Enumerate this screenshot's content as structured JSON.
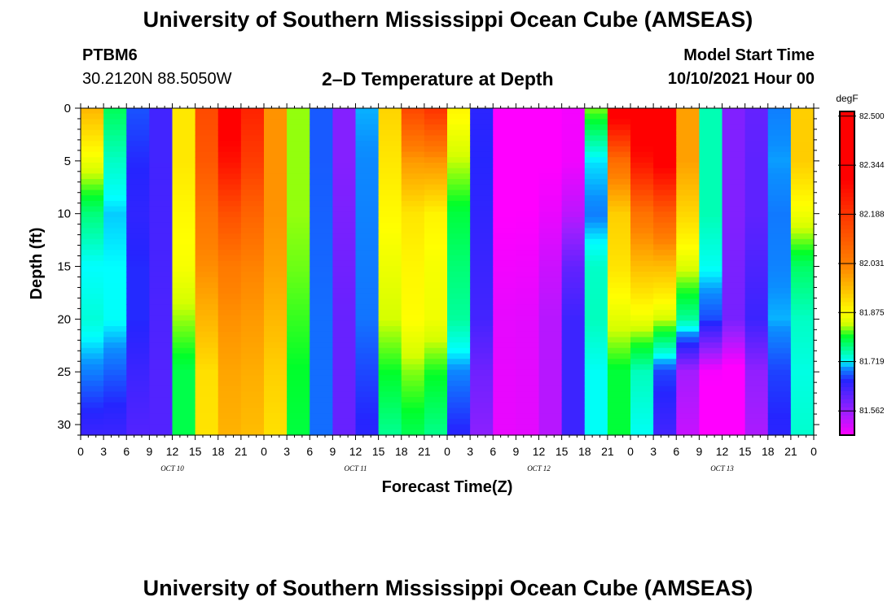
{
  "header": {
    "title": "University of Southern Mississippi Ocean Cube (AMSEAS)",
    "station": "PTBM6",
    "coordinates": "30.2120N  88.5050W",
    "chart_title": "2–D Temperature at Depth",
    "model_start_label": "Model Start Time",
    "model_start_date": "10/10/2021 Hour 00"
  },
  "footer": {
    "title": "University of Southern Mississippi Ocean Cube (AMSEAS)"
  },
  "chart_data": {
    "type": "heatmap",
    "title": "2–D Temperature at Depth",
    "xlabel": "Forecast Time(Z)",
    "ylabel": "Depth (ft)",
    "x_hours": [
      0,
      3,
      6,
      9,
      12,
      15,
      18,
      21,
      24,
      27,
      30,
      33,
      36,
      39,
      42,
      45,
      48,
      51,
      54,
      57,
      60,
      63,
      66,
      69,
      72,
      75,
      78,
      81,
      84,
      87,
      90,
      93,
      96
    ],
    "x_tick_labels": [
      "0",
      "3",
      "6",
      "9",
      "12",
      "15",
      "18",
      "21",
      "0",
      "3",
      "6",
      "9",
      "12",
      "15",
      "18",
      "21",
      "0",
      "3",
      "6",
      "9",
      "12",
      "15",
      "18",
      "21",
      "0",
      "3",
      "6",
      "9",
      "12",
      "15",
      "18",
      "21",
      "0"
    ],
    "date_labels": [
      {
        "label": "OCT 10",
        "hour": 12
      },
      {
        "label": "OCT 11",
        "hour": 36
      },
      {
        "label": "OCT 12",
        "hour": 60
      },
      {
        "label": "OCT 13",
        "hour": 84
      }
    ],
    "xlim": [
      0,
      96
    ],
    "ylim": [
      0,
      31
    ],
    "y_inverted": true,
    "y_ticks": [
      0,
      5,
      10,
      15,
      20,
      25,
      30
    ],
    "y_tick_labels": [
      "0",
      "5",
      "10",
      "15",
      "20",
      "25",
      "30"
    ],
    "depths": [
      0,
      5,
      10,
      15,
      20,
      25,
      31
    ],
    "temperature_degF": [
      [
        82.05,
        81.75,
        81.6,
        82.05,
        82.4,
        82.02,
        81.72,
        81.55,
        81.92,
        82.3,
        81.78,
        81.46,
        81.47,
        81.5,
        82.4,
        82.4,
        81.84,
        81.56,
        81.65,
        82.05
      ],
      [
        81.92,
        81.72,
        81.6,
        82.05,
        82.3,
        82.02,
        81.72,
        81.55,
        81.9,
        82.06,
        81.78,
        81.47,
        81.48,
        81.5,
        82.1,
        82.4,
        81.84,
        81.56,
        81.66,
        82.05
      ],
      [
        81.8,
        81.7,
        81.6,
        82.02,
        82.15,
        82.02,
        81.72,
        81.56,
        81.88,
        81.92,
        81.76,
        81.48,
        81.49,
        81.55,
        81.95,
        82.15,
        81.84,
        81.56,
        81.66,
        81.95
      ],
      [
        81.72,
        81.72,
        81.6,
        82.0,
        82.05,
        82.0,
        81.72,
        81.57,
        81.86,
        81.9,
        81.74,
        81.49,
        81.5,
        81.64,
        81.92,
        81.98,
        81.8,
        81.57,
        81.68,
        81.82
      ],
      [
        81.74,
        81.72,
        81.6,
        81.94,
        82.02,
        81.97,
        81.72,
        81.58,
        81.84,
        81.9,
        81.72,
        81.5,
        81.51,
        81.68,
        81.86,
        81.86,
        81.72,
        81.58,
        81.7,
        81.76
      ],
      [
        81.7,
        81.68,
        81.6,
        81.88,
        82.0,
        81.94,
        81.72,
        81.58,
        81.8,
        81.84,
        81.66,
        81.5,
        81.51,
        81.68,
        81.8,
        81.7,
        81.5,
        81.47,
        81.66,
        81.76
      ],
      [
        81.64,
        81.64,
        81.6,
        81.88,
        81.98,
        81.92,
        81.72,
        81.58,
        81.76,
        81.8,
        81.62,
        81.5,
        81.51,
        81.68,
        81.8,
        81.66,
        81.48,
        81.45,
        81.64,
        81.78
      ]
    ],
    "colorbar": {
      "unit": "degF",
      "min": 81.485,
      "max": 82.515,
      "labels": [
        "82.500",
        "82.344",
        "82.188",
        "82.031",
        "81.875",
        "81.719",
        "81.562"
      ],
      "values": [
        82.5,
        82.344,
        82.188,
        82.031,
        81.875,
        81.719,
        81.562
      ],
      "colors": [
        "#ff00ff",
        "#9b1fff",
        "#2525ff",
        "#0b8fff",
        "#00ffff",
        "#00ff2a",
        "#d4ff00",
        "#ffff00",
        "#ffbf00",
        "#ff8000",
        "#ff0000"
      ],
      "color_stops": [
        81.485,
        81.56,
        81.66,
        81.7,
        81.72,
        81.8,
        81.84,
        81.875,
        81.95,
        82.03,
        82.3
      ]
    }
  }
}
